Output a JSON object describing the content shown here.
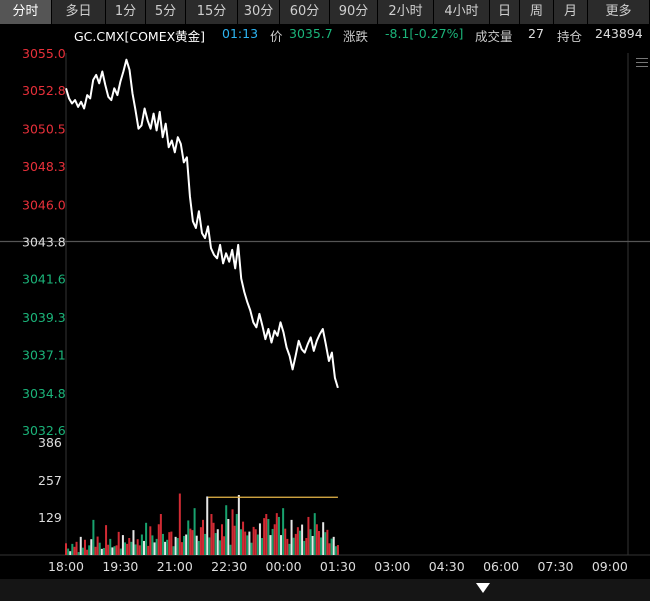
{
  "tabs": [
    "分时",
    "多日",
    "1分",
    "5分",
    "15分",
    "30分",
    "60分",
    "90分",
    "2小时",
    "4小时",
    "日",
    "周",
    "月",
    "更多"
  ],
  "active_tab": 0,
  "quote": {
    "symbol": "GC.CMX[COMEX黄金]",
    "time": "01:13",
    "price_label": "价",
    "price": "3035.7",
    "change_label": "涨跌",
    "change": "-8.1[-0.27%]",
    "volume_label": "成交量",
    "volume": "27",
    "oi_label": "持仓",
    "oi": "243894"
  },
  "colors": {
    "up": "#e8303a",
    "down": "#1bb47a",
    "line": "#ffffff",
    "neutral": "#ffffff",
    "avg": "#e8b84a",
    "accent": "#2db3f0"
  },
  "chart_data": {
    "type": "line",
    "prev_close": 3043.8,
    "price_axis": {
      "ticks": [
        "3055.0",
        "3052.8",
        "3050.5",
        "3048.3",
        "3046.0",
        "3043.8",
        "3041.6",
        "3039.3",
        "3037.1",
        "3034.8",
        "3032.6"
      ],
      "values": [
        3055.0,
        3052.8,
        3050.5,
        3048.3,
        3046.0,
        3043.8,
        3041.6,
        3039.3,
        3037.1,
        3034.8,
        3032.6
      ],
      "ylim": [
        3032.6,
        3055.0
      ]
    },
    "time_axis": {
      "ticks": [
        "18:00",
        "19:30",
        "21:00",
        "22:30",
        "00:00",
        "01:30",
        "03:00",
        "04:30",
        "06:00",
        "07:30",
        "09:00"
      ],
      "minutes": [
        0,
        90,
        180,
        270,
        360,
        450,
        540,
        630,
        720,
        810,
        900
      ],
      "xlim": [
        0,
        930
      ]
    },
    "price_series": [
      [
        0,
        3052.9
      ],
      [
        5,
        3052.3
      ],
      [
        10,
        3052.0
      ],
      [
        15,
        3052.2
      ],
      [
        20,
        3051.8
      ],
      [
        25,
        3052.1
      ],
      [
        30,
        3051.7
      ],
      [
        35,
        3052.5
      ],
      [
        40,
        3052.3
      ],
      [
        45,
        3053.4
      ],
      [
        50,
        3053.7
      ],
      [
        55,
        3053.2
      ],
      [
        60,
        3053.9
      ],
      [
        65,
        3053.1
      ],
      [
        70,
        3052.4
      ],
      [
        75,
        3052.2
      ],
      [
        80,
        3052.9
      ],
      [
        85,
        3052.5
      ],
      [
        90,
        3053.3
      ],
      [
        95,
        3053.9
      ],
      [
        100,
        3054.6
      ],
      [
        105,
        3054.0
      ],
      [
        110,
        3052.6
      ],
      [
        115,
        3051.6
      ],
      [
        120,
        3050.5
      ],
      [
        125,
        3050.7
      ],
      [
        130,
        3051.7
      ],
      [
        135,
        3051.0
      ],
      [
        140,
        3050.5
      ],
      [
        145,
        3051.4
      ],
      [
        150,
        3050.4
      ],
      [
        155,
        3051.5
      ],
      [
        160,
        3050.0
      ],
      [
        165,
        3050.8
      ],
      [
        170,
        3049.4
      ],
      [
        175,
        3049.8
      ],
      [
        180,
        3049.1
      ],
      [
        185,
        3050.0
      ],
      [
        190,
        3049.6
      ],
      [
        195,
        3048.5
      ],
      [
        200,
        3048.8
      ],
      [
        205,
        3046.5
      ],
      [
        210,
        3045.0
      ],
      [
        215,
        3044.6
      ],
      [
        220,
        3045.6
      ],
      [
        225,
        3044.3
      ],
      [
        230,
        3044.0
      ],
      [
        235,
        3044.7
      ],
      [
        240,
        3043.4
      ],
      [
        245,
        3043.0
      ],
      [
        250,
        3042.8
      ],
      [
        255,
        3043.6
      ],
      [
        260,
        3042.5
      ],
      [
        265,
        3043.1
      ],
      [
        270,
        3042.6
      ],
      [
        275,
        3043.3
      ],
      [
        280,
        3042.2
      ],
      [
        285,
        3043.6
      ],
      [
        290,
        3041.6
      ],
      [
        295,
        3040.8
      ],
      [
        300,
        3040.2
      ],
      [
        305,
        3039.7
      ],
      [
        310,
        3039.0
      ],
      [
        315,
        3038.7
      ],
      [
        320,
        3039.5
      ],
      [
        325,
        3038.8
      ],
      [
        330,
        3038.0
      ],
      [
        335,
        3038.6
      ],
      [
        340,
        3037.8
      ],
      [
        345,
        3038.5
      ],
      [
        350,
        3038.2
      ],
      [
        355,
        3039.0
      ],
      [
        360,
        3038.4
      ],
      [
        365,
        3037.5
      ],
      [
        370,
        3037.0
      ],
      [
        375,
        3036.2
      ],
      [
        380,
        3037.0
      ],
      [
        385,
        3037.9
      ],
      [
        390,
        3037.4
      ],
      [
        395,
        3037.2
      ],
      [
        400,
        3037.7
      ],
      [
        405,
        3038.1
      ],
      [
        410,
        3037.3
      ],
      [
        415,
        3037.9
      ],
      [
        420,
        3038.3
      ],
      [
        425,
        3038.6
      ],
      [
        430,
        3037.7
      ],
      [
        435,
        3036.7
      ],
      [
        440,
        3037.2
      ],
      [
        445,
        3035.7
      ],
      [
        450,
        3035.1
      ]
    ],
    "avg_line": {
      "start": 235,
      "end": 450,
      "value": 3028.9
    },
    "volume_axis": {
      "ticks": [
        "386",
        "257",
        "129"
      ],
      "values": [
        386,
        257,
        129
      ],
      "ylim": [
        0,
        386
      ]
    },
    "volume_series": [
      40,
      22,
      13,
      38,
      28,
      45,
      10,
      62,
      25,
      52,
      18,
      33,
      54,
      120,
      28,
      63,
      42,
      21,
      24,
      102,
      35,
      55,
      26,
      30,
      33,
      79,
      22,
      68,
      43,
      38,
      58,
      45,
      85,
      36,
      54,
      33,
      70,
      48,
      110,
      31,
      98,
      67,
      43,
      55,
      105,
      140,
      72,
      45,
      52,
      78,
      80,
      30,
      62,
      58,
      210,
      44,
      65,
      70,
      118,
      90,
      85,
      160,
      66,
      48,
      95,
      120,
      72,
      200,
      60,
      140,
      110,
      75,
      88,
      50,
      105,
      64,
      170,
      123,
      35,
      156,
      100,
      140,
      205,
      88,
      114,
      80,
      67,
      80,
      42,
      96,
      88,
      70,
      108,
      58,
      126,
      140,
      123,
      68,
      89,
      105,
      143,
      130,
      68,
      160,
      90,
      55,
      38,
      120,
      59,
      72,
      95,
      83,
      104,
      48,
      58,
      130,
      88,
      65,
      143,
      105,
      82,
      60,
      112,
      78,
      86,
      40,
      56,
      62,
      30,
      34
    ]
  }
}
